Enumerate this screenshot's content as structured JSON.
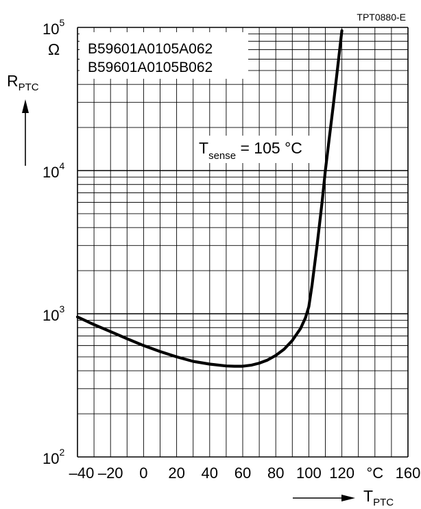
{
  "chart_data": {
    "type": "line",
    "figure_code": "TPT0880-E",
    "part_numbers": [
      "B59601A0105A062",
      "B59601A0105B062"
    ],
    "annotation": {
      "main": "T",
      "subscript": "sense",
      "rest": " = 105 °C"
    },
    "ylabel": {
      "main": "R",
      "subscript": "PTC"
    },
    "xlabel": {
      "main": "T",
      "subscript": "PTC"
    },
    "y_unit": "Ω",
    "x_unit": "°C",
    "y_scale": "log",
    "ylim": [
      100,
      100000
    ],
    "xlim": [
      -40,
      160
    ],
    "x_ticks": [
      -40,
      -20,
      0,
      20,
      40,
      60,
      80,
      100,
      120,
      140,
      160
    ],
    "x_tick_labels": [
      "–40",
      "–20",
      "0",
      "20",
      "40",
      "60",
      "80",
      "100",
      "120",
      "°C",
      "160"
    ],
    "y_ticks": [
      {
        "base": "10",
        "exp": "2"
      },
      {
        "base": "10",
        "exp": "3"
      },
      {
        "base": "10",
        "exp": "4"
      },
      {
        "base": "10",
        "exp": "5"
      }
    ],
    "grid": true,
    "series": [
      {
        "x": [
          -40,
          -30,
          -20,
          -10,
          0,
          10,
          20,
          30,
          40,
          50,
          55,
          60,
          65,
          70,
          75,
          80,
          85,
          90,
          95,
          98,
          100,
          102,
          105,
          108,
          110,
          115,
          120
        ],
        "y": [
          950,
          840,
          750,
          670,
          600,
          545,
          500,
          465,
          445,
          432,
          430,
          430,
          437,
          452,
          475,
          512,
          565,
          650,
          790,
          940,
          1120,
          1600,
          3000,
          6000,
          10000,
          30000,
          95000
        ]
      }
    ]
  }
}
